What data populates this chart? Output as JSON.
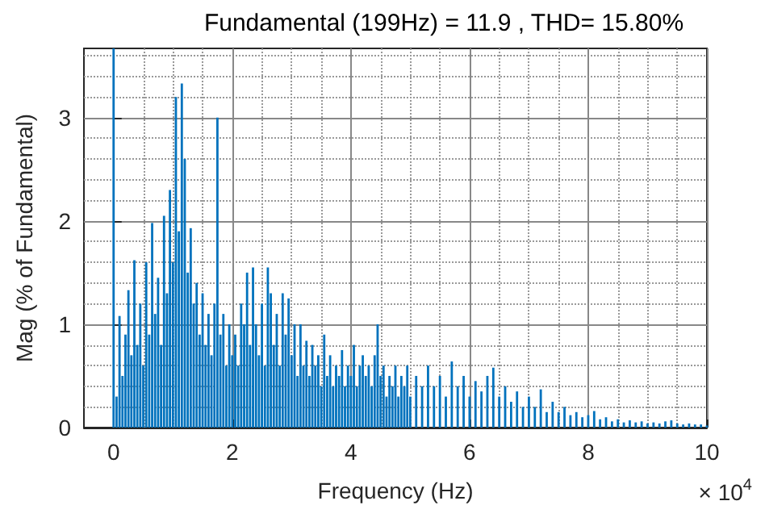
{
  "chart_data": {
    "type": "bar",
    "title": "Fundamental (199Hz) = 11.9 , THD= 15.80%",
    "xlabel": "Frequency (Hz)",
    "ylabel": "Mag (% of Fundamental)",
    "annotations": [
      "× 10$^{4}$"
    ],
    "x": [
      0,
      0.05,
      0.1,
      0.15,
      0.2,
      0.25,
      0.3,
      0.35,
      0.4,
      0.45,
      0.5,
      0.55,
      0.6,
      0.65,
      0.7,
      0.75,
      0.8,
      0.85,
      0.9,
      0.95,
      1.0,
      1.05,
      1.1,
      1.15,
      1.2,
      1.25,
      1.3,
      1.35,
      1.4,
      1.45,
      1.5,
      1.55,
      1.6,
      1.65,
      1.7,
      1.75,
      1.8,
      1.85,
      1.9,
      1.95,
      2.0,
      2.05,
      2.1,
      2.15,
      2.2,
      2.25,
      2.3,
      2.35,
      2.4,
      2.45,
      2.5,
      2.55,
      2.6,
      2.65,
      2.7,
      2.75,
      2.8,
      2.85,
      2.9,
      2.95,
      3.0,
      3.05,
      3.1,
      3.15,
      3.2,
      3.25,
      3.3,
      3.35,
      3.4,
      3.45,
      3.5,
      3.55,
      3.6,
      3.65,
      3.7,
      3.75,
      3.8,
      3.85,
      3.9,
      3.95,
      4.0,
      4.05,
      4.1,
      4.15,
      4.2,
      4.25,
      4.3,
      4.35,
      4.4,
      4.45,
      4.5,
      4.55,
      4.6,
      4.65,
      4.7,
      4.75,
      4.8,
      4.85,
      4.9,
      4.95,
      5.0,
      5.1,
      5.2,
      5.3,
      5.4,
      5.5,
      5.6,
      5.7,
      5.8,
      5.9,
      6.0,
      6.1,
      6.2,
      6.3,
      6.4,
      6.5,
      6.6,
      6.7,
      6.8,
      6.9,
      7.0,
      7.1,
      7.2,
      7.3,
      7.4,
      7.5,
      7.6,
      7.7,
      7.8,
      7.9,
      8.0,
      8.1,
      8.2,
      8.3,
      8.4,
      8.5,
      8.6,
      8.7,
      8.8,
      8.9,
      9.0,
      9.1,
      9.2,
      9.3,
      9.4,
      9.5,
      9.6,
      9.7,
      9.8,
      9.9,
      10.0
    ],
    "series": [
      {
        "color": "#0072bd",
        "values": [
          3.67,
          0.3,
          1.08,
          0.5,
          0.9,
          1.33,
          0.7,
          1.62,
          0.8,
          1.2,
          0.6,
          1.6,
          0.9,
          1.98,
          1.1,
          1.45,
          0.8,
          2.05,
          1.3,
          2.3,
          1.6,
          3.2,
          1.9,
          3.33,
          2.6,
          1.5,
          1.93,
          1.2,
          1.4,
          0.9,
          1.3,
          0.8,
          1.1,
          0.7,
          1.2,
          3.0,
          0.9,
          1.1,
          0.6,
          1.0,
          0.7,
          0.9,
          0.6,
          1.2,
          1.0,
          1.5,
          0.8,
          1.55,
          1.0,
          0.7,
          1.2,
          0.6,
          1.55,
          1.3,
          0.8,
          1.1,
          0.6,
          1.3,
          0.9,
          1.25,
          0.7,
          1.0,
          0.5,
          1.0,
          0.6,
          0.84,
          0.5,
          0.8,
          0.6,
          0.7,
          0.4,
          0.9,
          0.5,
          0.7,
          0.4,
          0.6,
          0.5,
          0.75,
          0.4,
          0.6,
          0.5,
          0.8,
          0.4,
          0.6,
          0.7,
          0.5,
          0.6,
          0.4,
          0.7,
          1.0,
          0.5,
          0.6,
          0.3,
          0.5,
          0.4,
          0.6,
          0.3,
          0.5,
          0.4,
          0.6,
          0.3,
          0.5,
          0.4,
          0.6,
          0.4,
          0.5,
          0.3,
          0.64,
          0.4,
          0.5,
          0.3,
          0.45,
          0.35,
          0.5,
          0.58,
          0.3,
          0.4,
          0.25,
          0.35,
          0.2,
          0.3,
          0.2,
          0.37,
          0.15,
          0.25,
          0.15,
          0.2,
          0.12,
          0.15,
          0.1,
          0.12,
          0.16,
          0.08,
          0.1,
          0.06,
          0.08,
          0.05,
          0.07,
          0.05,
          0.06,
          0.04,
          0.05,
          0.04,
          0.06,
          0.07,
          0.04,
          0.03,
          0.04,
          0.03,
          0.03,
          0.02
        ]
      }
    ],
    "xlim": [
      -0.5,
      10
    ],
    "xticks": [
      0,
      2,
      4,
      6,
      8,
      10
    ],
    "ylim": [
      0,
      3.67
    ],
    "yticks": [
      0,
      1,
      2,
      3
    ],
    "grid": true
  }
}
